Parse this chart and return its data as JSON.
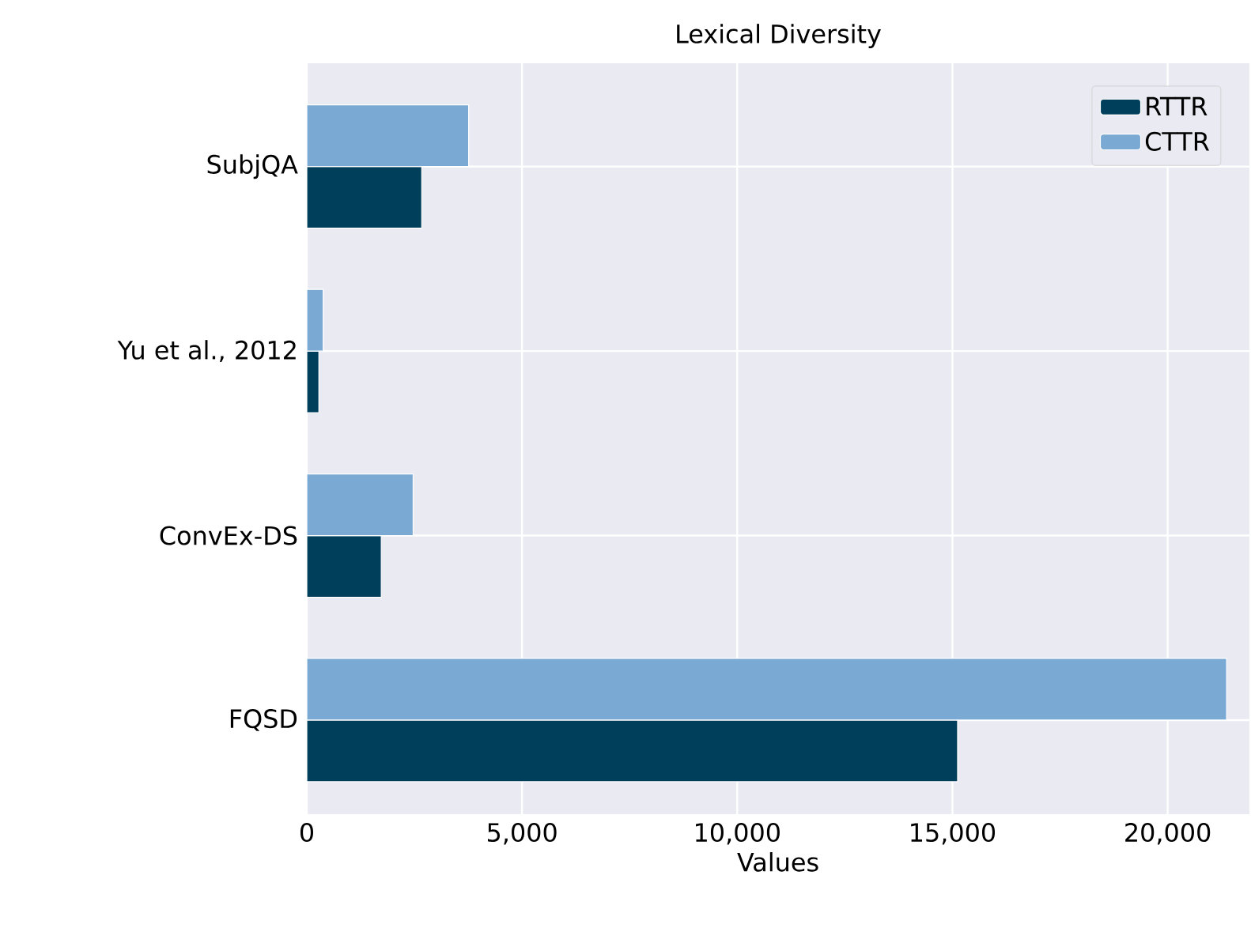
{
  "chart_data": {
    "type": "bar",
    "orientation": "horizontal",
    "title": "Lexical Diversity",
    "xlabel": "Values",
    "categories": [
      "SubjQA",
      "Yu et al., 2012",
      "ConvEx-DS",
      "FQSD"
    ],
    "series": [
      {
        "name": "RTTR",
        "color": "#003f5c",
        "values": [
          2670,
          280,
          1730,
          15120
        ]
      },
      {
        "name": "CTTR",
        "color": "#7aaad4",
        "values": [
          3760,
          380,
          2470,
          21370
        ]
      }
    ],
    "xlim": [
      0,
      21900
    ],
    "xticks": [
      0,
      {
        "value": 5000,
        "label": "5,000"
      },
      {
        "value": 10000,
        "label": "10,000"
      },
      {
        "value": 15000,
        "label": "15,000"
      },
      {
        "value": 20000,
        "label": "20,000"
      }
    ],
    "grid": true,
    "legend": "top right"
  }
}
